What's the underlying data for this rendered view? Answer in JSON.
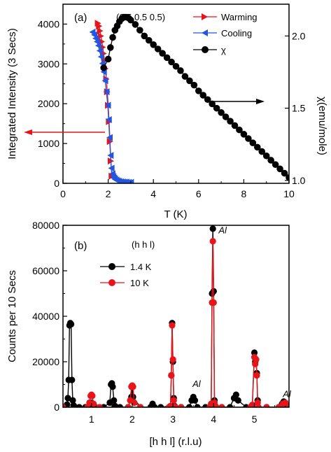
{
  "chart_data": [
    {
      "panel_label": "(a)",
      "annotation": "(0.5 0.5 0.5)",
      "type": "scatter",
      "xlabel": "T (K)",
      "ylabel": "Integrated Intensity (3 Secs)",
      "y2label": "χ(emu/mole)",
      "xlim": [
        0,
        10
      ],
      "ylim": [
        0,
        4500
      ],
      "y2lim": [
        0.98,
        2.22
      ],
      "xticks": [
        "0",
        "2",
        "4",
        "6",
        "8",
        "10"
      ],
      "yticks": [
        "0",
        "1000",
        "2000",
        "3000",
        "4000"
      ],
      "y2ticks": [
        "1.0",
        "1.5",
        "2.0"
      ],
      "legend_position": "top-right",
      "series": [
        {
          "name": "Warming",
          "color": "#e8141a",
          "marker": "triangle-right",
          "axis": "left",
          "x": [
            1.55,
            1.6,
            1.64,
            1.68,
            1.72,
            1.76,
            1.8,
            1.84,
            1.88,
            1.92,
            1.96,
            2.0,
            2.04,
            2.08,
            2.12,
            2.16
          ],
          "y": [
            4020,
            3950,
            3830,
            3700,
            3560,
            3420,
            3260,
            3080,
            2880,
            2620,
            2300,
            1960,
            1550,
            1050,
            560,
            180
          ]
        },
        {
          "name": "Cooling",
          "color": "#2355e0",
          "marker": "triangle-left",
          "axis": "left",
          "x": [
            1.3,
            1.38,
            1.44,
            1.5,
            1.56,
            1.62,
            1.68,
            1.74,
            1.8,
            1.86,
            1.92,
            1.98,
            2.02,
            2.06,
            2.1,
            2.14,
            2.18,
            2.22,
            2.26,
            2.3,
            2.36,
            2.42,
            2.48,
            2.56,
            2.64,
            2.72,
            2.8,
            2.9,
            3.0
          ],
          "y": [
            3800,
            3730,
            3640,
            3560,
            3460,
            3330,
            3180,
            3010,
            2800,
            2580,
            2300,
            1960,
            1600,
            1150,
            700,
            380,
            240,
            170,
            130,
            100,
            80,
            60,
            50,
            40,
            35,
            30,
            30,
            25,
            25
          ]
        },
        {
          "name": "χ",
          "color": "#000000",
          "marker": "circle",
          "axis": "right",
          "x": [
            1.8,
            2.0,
            2.1,
            2.2,
            2.3,
            2.4,
            2.5,
            2.6,
            2.7,
            2.8,
            2.9,
            3.0,
            3.2,
            3.4,
            3.6,
            3.8,
            4.0,
            4.2,
            4.4,
            4.6,
            4.8,
            5.0,
            5.2,
            5.4,
            5.6,
            5.8,
            6.0,
            6.2,
            6.4,
            6.6,
            6.8,
            7.0,
            7.2,
            7.4,
            7.6,
            7.8,
            8.0,
            8.2,
            8.4,
            8.6,
            8.8,
            9.0,
            9.2,
            9.4,
            9.6,
            9.8,
            10.0
          ],
          "y": [
            1.78,
            1.84,
            1.92,
            1.99,
            2.04,
            2.07,
            2.1,
            2.12,
            2.13,
            2.13,
            2.125,
            2.11,
            2.08,
            2.04,
            2.0,
            1.97,
            1.94,
            1.91,
            1.88,
            1.85,
            1.82,
            1.79,
            1.76,
            1.72,
            1.69,
            1.66,
            1.62,
            1.59,
            1.56,
            1.53,
            1.5,
            1.47,
            1.44,
            1.41,
            1.38,
            1.35,
            1.32,
            1.29,
            1.26,
            1.23,
            1.2,
            1.17,
            1.14,
            1.11,
            1.08,
            1.05,
            1.02
          ]
        }
      ]
    },
    {
      "panel_label": "(b)",
      "annotation": "(h h l)",
      "type": "line",
      "xlabel": "[h h l] (r.l.u)",
      "ylabel": "Counts per 10 Secs",
      "xlim": [
        0.3,
        5.85
      ],
      "ylim": [
        0,
        80000
      ],
      "xticks": [
        "1",
        "2",
        "3",
        "4",
        "5"
      ],
      "yticks": [
        "0",
        "20000",
        "40000",
        "60000",
        "80000"
      ],
      "legend_position": "top-left",
      "peak_labels": [
        {
          "text": "Al",
          "x": 4.12,
          "y": 76500
        },
        {
          "text": "Al",
          "x": 3.48,
          "y": 9000
        },
        {
          "text": "Al",
          "x": 5.7,
          "y": 4500
        }
      ],
      "series": [
        {
          "name": "1.4 K",
          "color": "#000000",
          "x": [
            0.3,
            0.38,
            0.4,
            0.42,
            0.44,
            0.46,
            0.48,
            0.5,
            0.52,
            0.54,
            0.56,
            0.58,
            0.6,
            0.7,
            0.85,
            0.98,
            1.0,
            1.02,
            1.1,
            1.3,
            1.45,
            1.48,
            1.5,
            1.52,
            1.55,
            1.58,
            1.7,
            1.9,
            1.98,
            2.0,
            2.02,
            2.2,
            2.45,
            2.5,
            2.55,
            2.7,
            2.94,
            2.96,
            2.98,
            3.0,
            3.02,
            3.04,
            3.06,
            3.2,
            3.4,
            3.46,
            3.5,
            3.54,
            3.6,
            3.8,
            3.94,
            3.96,
            3.98,
            4.0,
            4.02,
            4.04,
            4.06,
            4.2,
            4.4,
            4.5,
            4.55,
            4.6,
            4.8,
            4.95,
            5.0,
            5.02,
            5.04,
            5.06,
            5.08,
            5.1,
            5.3,
            5.6,
            5.68,
            5.72,
            5.76,
            5.85
          ],
          "y": [
            0,
            0,
            1200,
            4000,
            12000,
            36000,
            37000,
            36500,
            12000,
            3000,
            800,
            200,
            0,
            0,
            0,
            1500,
            2000,
            1500,
            0,
            0,
            2000,
            10000,
            10500,
            9000,
            3000,
            500,
            0,
            0,
            4500,
            9500,
            4500,
            0,
            0,
            1500,
            0,
            0,
            500,
            14000,
            37000,
            20000,
            4000,
            500,
            0,
            0,
            0,
            3000,
            4500,
            3000,
            0,
            0,
            1500,
            50000,
            78500,
            51000,
            3000,
            500,
            0,
            0,
            0,
            4000,
            5500,
            3000,
            0,
            1000,
            24000,
            20000,
            21000,
            15000,
            3000,
            0,
            0,
            0,
            1500,
            2500,
            1500,
            0
          ]
        },
        {
          "name": "10 K",
          "color": "#e8141a",
          "x": [
            0.3,
            0.9,
            0.95,
            0.98,
            1.0,
            1.02,
            1.05,
            1.2,
            1.9,
            1.95,
            1.98,
            2.0,
            2.02,
            2.05,
            2.2,
            2.9,
            2.94,
            2.96,
            2.98,
            3.0,
            3.02,
            3.04,
            3.06,
            3.2,
            3.9,
            3.94,
            3.96,
            3.98,
            4.0,
            4.02,
            4.04,
            4.06,
            4.2,
            4.9,
            4.95,
            5.0,
            5.02,
            5.04,
            5.06,
            5.08,
            5.1,
            5.3,
            5.6,
            5.7,
            5.76,
            5.85
          ],
          "y": [
            0,
            0,
            2000,
            5000,
            5500,
            5000,
            1500,
            0,
            0,
            3000,
            9000,
            9500,
            9000,
            2000,
            0,
            0,
            500,
            14000,
            36000,
            21000,
            3000,
            200,
            0,
            0,
            0,
            1500,
            46000,
            73000,
            46000,
            2000,
            300,
            0,
            0,
            0,
            1000,
            22000,
            19000,
            21000,
            14000,
            2000,
            0,
            0,
            0,
            1500,
            2000,
            0
          ]
        }
      ]
    }
  ]
}
